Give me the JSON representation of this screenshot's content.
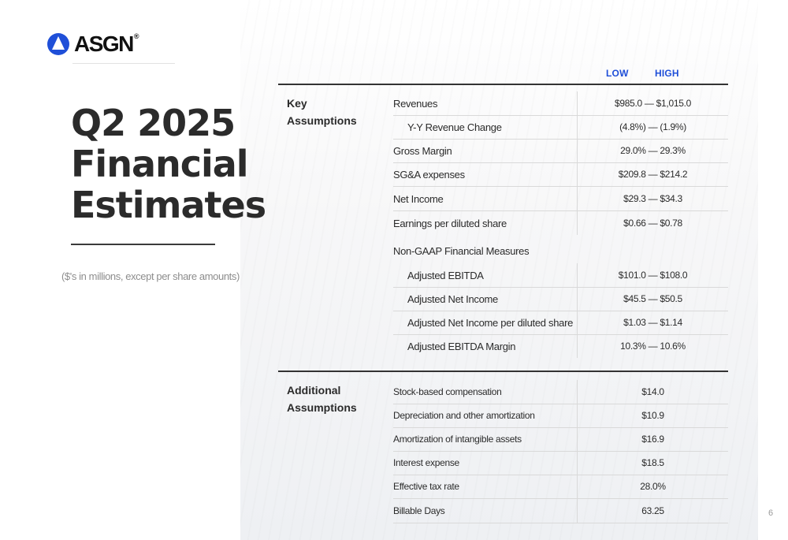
{
  "brand": {
    "name": "ASGN",
    "reg_mark": "®",
    "accent": "#1f4fd8"
  },
  "title": {
    "lines": [
      "Q2 2025",
      "Financial",
      "Estimates"
    ]
  },
  "subtitle": "($'s in millions, except per share amounts)",
  "columns": {
    "low": "LOW",
    "high": "HIGH"
  },
  "key_assumptions": {
    "label": "Key\nAssumptions",
    "label_line1": "Key",
    "label_line2": "Assumptions",
    "rows": [
      {
        "label": "Revenues",
        "value": "$985.0 — $1,015.0"
      },
      {
        "label": "Y-Y Revenue Change",
        "value": "(4.8%) — (1.9%)"
      },
      {
        "label": "Gross Margin",
        "value": "29.0% — 29.3%"
      },
      {
        "label": "SG&A expenses",
        "value": "$209.8 — $214.2"
      },
      {
        "label": "Net Income",
        "value": "$29.3 — $34.3"
      },
      {
        "label": "Earnings per diluted share",
        "value": "$0.66 — $0.78"
      }
    ],
    "non_gaap_header": "Non-GAAP Financial Measures",
    "non_gaap_rows": [
      {
        "label": "Adjusted EBITDA",
        "value": "$101.0 — $108.0"
      },
      {
        "label": "Adjusted Net Income",
        "value": "$45.5 — $50.5"
      },
      {
        "label": "Adjusted Net Income per diluted share",
        "value": "$1.03 — $1.14"
      },
      {
        "label": "Adjusted EBITDA Margin",
        "value": "10.3% — 10.6%"
      }
    ]
  },
  "additional_assumptions": {
    "label_line1": "Additional",
    "label_line2": "Assumptions",
    "rows": [
      {
        "label": "Stock-based compensation",
        "value": "$14.0"
      },
      {
        "label": "Depreciation and other amortization",
        "value": "$10.9"
      },
      {
        "label": "Amortization of intangible assets",
        "value": "$16.9"
      },
      {
        "label": "Interest expense",
        "value": "$18.5"
      },
      {
        "label": "Effective tax rate",
        "value": "28.0%"
      },
      {
        "label": "Billable Days",
        "value": "63.25"
      }
    ]
  },
  "page_number": "6"
}
